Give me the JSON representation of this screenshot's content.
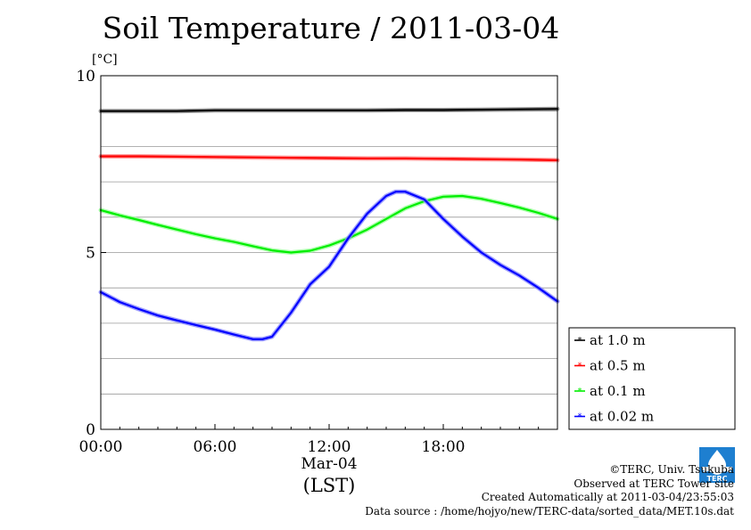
{
  "title": "Soil Temperature / 2011-03-04",
  "chart_data": {
    "type": "line",
    "title": "Soil Temperature / 2011-03-04",
    "ylabel": "[°C]",
    "xlabel": "(LST)",
    "date_label": "Mar-04",
    "ylim": [
      0,
      10
    ],
    "xlim": [
      0,
      24
    ],
    "yticks": [
      {
        "value": 0,
        "label": "0"
      },
      {
        "value": 5,
        "label": "5"
      },
      {
        "value": 10,
        "label": "10"
      }
    ],
    "xticks": [
      {
        "value": 0,
        "label": "00:00"
      },
      {
        "value": 6,
        "label": "06:00"
      },
      {
        "value": 12,
        "label": "12:00"
      },
      {
        "value": 18,
        "label": "18:00"
      }
    ],
    "grid": true,
    "legend_position": "right",
    "series": [
      {
        "name": "at 1.0 m",
        "color": "#000000",
        "glow": "#888888",
        "x": [
          0,
          2,
          4,
          6,
          8,
          10,
          12,
          14,
          16,
          18,
          20,
          22,
          24
        ],
        "y": [
          9.0,
          9.0,
          9.0,
          9.02,
          9.02,
          9.02,
          9.02,
          9.02,
          9.03,
          9.03,
          9.04,
          9.05,
          9.06
        ]
      },
      {
        "name": "at 0.5 m",
        "color": "#ff0000",
        "glow": "#ff8888",
        "x": [
          0,
          2,
          4,
          6,
          8,
          10,
          12,
          14,
          16,
          18,
          20,
          22,
          24
        ],
        "y": [
          7.72,
          7.72,
          7.71,
          7.7,
          7.69,
          7.68,
          7.67,
          7.66,
          7.66,
          7.65,
          7.64,
          7.63,
          7.61
        ]
      },
      {
        "name": "at 0.1 m",
        "color": "#00ee00",
        "glow": "#99ff99",
        "x": [
          0,
          1,
          2,
          3,
          4,
          5,
          6,
          7,
          8,
          9,
          10,
          11,
          12,
          13,
          14,
          15,
          16,
          17,
          18,
          19,
          20,
          21,
          22,
          23,
          24
        ],
        "y": [
          6.2,
          6.05,
          5.92,
          5.78,
          5.65,
          5.52,
          5.4,
          5.3,
          5.18,
          5.06,
          5.0,
          5.05,
          5.2,
          5.4,
          5.65,
          5.95,
          6.25,
          6.45,
          6.58,
          6.6,
          6.52,
          6.4,
          6.27,
          6.12,
          5.95
        ]
      },
      {
        "name": "at 0.02 m",
        "color": "#0000ff",
        "glow": "#8888ff",
        "x": [
          0,
          1,
          2,
          3,
          4,
          5,
          6,
          7,
          8,
          8.5,
          9,
          10,
          11,
          12,
          13,
          14,
          15,
          15.5,
          16,
          17,
          18,
          19,
          20,
          21,
          22,
          23,
          24
        ],
        "y": [
          3.88,
          3.6,
          3.4,
          3.22,
          3.08,
          2.95,
          2.82,
          2.68,
          2.55,
          2.55,
          2.62,
          3.3,
          4.1,
          4.6,
          5.4,
          6.1,
          6.6,
          6.72,
          6.72,
          6.5,
          5.95,
          5.45,
          5.0,
          4.65,
          4.35,
          4.0,
          3.62
        ]
      }
    ]
  },
  "credits": {
    "copyright": "©TERC, Univ. Tsukuba",
    "site": "Observed at TERC Tower site",
    "created": "Created Automatically at 2011-03-04/23:55:03",
    "source": "Data source : /home/hojyo/new/TERC-data/sorted_data/MET.10s.dat"
  },
  "logo": {
    "text": "TERC",
    "color": "#1e7fd0"
  }
}
